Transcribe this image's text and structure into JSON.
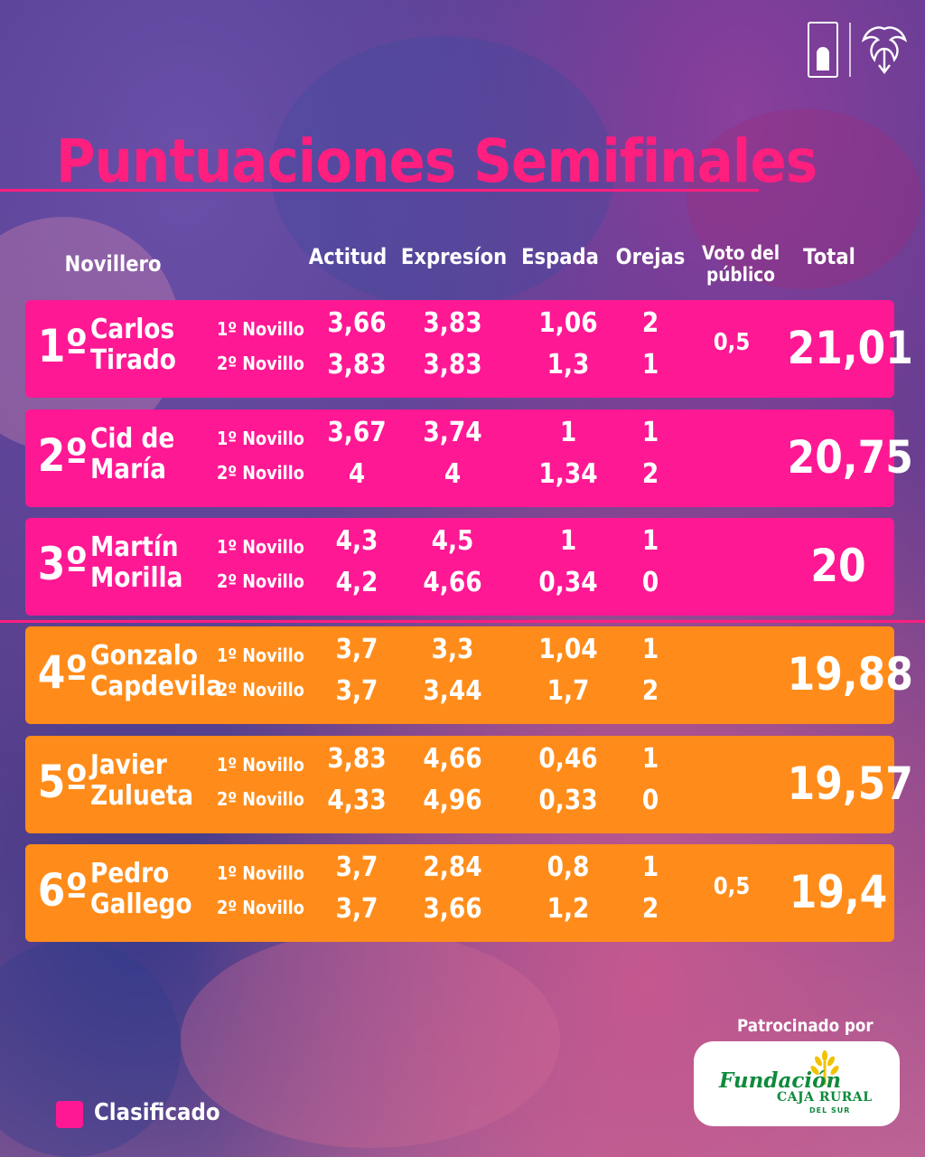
{
  "title": "Puntuaciones Semifinales",
  "colors": {
    "classified": "#ff1893",
    "not_classified": "#ff8c1a",
    "title": "#ff1f7f"
  },
  "headers": {
    "novillero": "Novillero",
    "actitud": "Actitud",
    "expresion": "Expresíon",
    "espada": "Espada",
    "orejas": "Orejas",
    "voto_line1": "Voto del",
    "voto_line2": "público",
    "total": "Total"
  },
  "rows": [
    {
      "pos": "1º",
      "first": "Carlos",
      "last": "Tirado",
      "n1": "1º Novillo",
      "n2": "2º Novillo",
      "act": [
        "3,66",
        "3,83"
      ],
      "exp": [
        "3,83",
        "3,83"
      ],
      "esp": [
        "1,06",
        "1,3"
      ],
      "ore": [
        "2",
        "1"
      ],
      "vote": "0,5",
      "total": "21,01",
      "classified": true
    },
    {
      "pos": "2º",
      "first": "Cid de",
      "last": "María",
      "n1": "1º Novillo",
      "n2": "2º Novillo",
      "act": [
        "3,67",
        "4"
      ],
      "exp": [
        "3,74",
        "4"
      ],
      "esp": [
        "1",
        "1,34"
      ],
      "ore": [
        "1",
        "2"
      ],
      "vote": "",
      "total": "20,75",
      "classified": true
    },
    {
      "pos": "3º",
      "first": "Martín",
      "last": "Morilla",
      "n1": "1º Novillo",
      "n2": "2º Novillo",
      "act": [
        "4,3",
        "4,2"
      ],
      "exp": [
        "4,5",
        "4,66"
      ],
      "esp": [
        "1",
        "0,34"
      ],
      "ore": [
        "1",
        "0"
      ],
      "vote": "",
      "total": "20",
      "classified": true
    },
    {
      "pos": "4º",
      "first": "Gonzalo",
      "last": "Capdevila",
      "n1": "1º Novillo",
      "n2": "2º Novillo",
      "act": [
        "3,7",
        "3,7"
      ],
      "exp": [
        "3,3",
        "3,44"
      ],
      "esp": [
        "1,04",
        "1,7"
      ],
      "ore": [
        "1",
        "2"
      ],
      "vote": "",
      "total": "19,88",
      "classified": false
    },
    {
      "pos": "5º",
      "first": "Javier",
      "last": "Zulueta",
      "n1": "1º Novillo",
      "n2": "2º Novillo",
      "act": [
        "3,83",
        "4,33"
      ],
      "exp": [
        "4,66",
        "4,96"
      ],
      "esp": [
        "0,46",
        "0,33"
      ],
      "ore": [
        "1",
        "0"
      ],
      "vote": "",
      "total": "19,57",
      "classified": false
    },
    {
      "pos": "6º",
      "first": "Pedro",
      "last": "Gallego",
      "n1": "1º Novillo",
      "n2": "2º Novillo",
      "act": [
        "3,7",
        "3,7"
      ],
      "exp": [
        "2,84",
        "3,66"
      ],
      "esp": [
        "0,8",
        "1,2"
      ],
      "ore": [
        "1",
        "2"
      ],
      "vote": "0,5",
      "total": "19,4",
      "classified": false
    }
  ],
  "sponsor": {
    "label": "Patrocinado por",
    "line1": "Fundación",
    "line2": "CAJA RURAL",
    "line3": "DEL SUR"
  },
  "legend": {
    "label": "Clasificado"
  }
}
